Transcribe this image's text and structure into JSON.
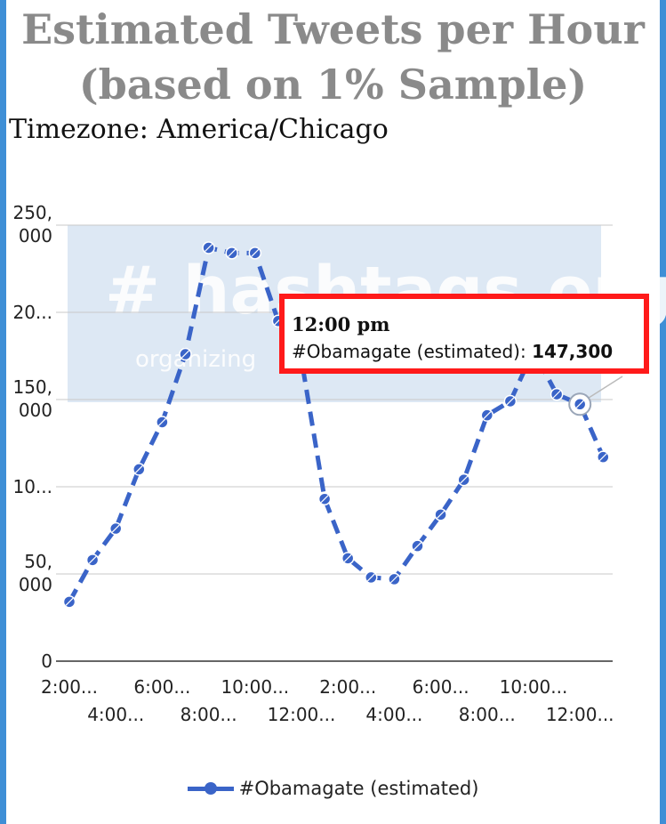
{
  "chart_data": {
    "type": "line",
    "title_lines": [
      "Estimated Tweets per Hour",
      "(based on 1% Sample)"
    ],
    "subtitle": "Timezone: America/Chicago",
    "y_ticks": [
      {
        "value": 0,
        "label": [
          "0"
        ]
      },
      {
        "value": 50000,
        "label": [
          "50,",
          "000"
        ]
      },
      {
        "value": 100000,
        "label": [
          "10..."
        ]
      },
      {
        "value": 150000,
        "label": [
          "150,",
          "000"
        ]
      },
      {
        "value": 200000,
        "label": [
          "20..."
        ]
      },
      {
        "value": 250000,
        "label": [
          "250,",
          "000"
        ]
      }
    ],
    "ylim": [
      0,
      250000
    ],
    "x_tick_labels": [
      {
        "index": 0,
        "text": "2:00..."
      },
      {
        "index": 2,
        "text": "4:00..."
      },
      {
        "index": 4,
        "text": "6:00..."
      },
      {
        "index": 6,
        "text": "8:00..."
      },
      {
        "index": 8,
        "text": "10:00..."
      },
      {
        "index": 10,
        "text": "12:00..."
      },
      {
        "index": 12,
        "text": "2:00..."
      },
      {
        "index": 14,
        "text": "4:00..."
      },
      {
        "index": 16,
        "text": "6:00..."
      },
      {
        "index": 18,
        "text": "8:00..."
      },
      {
        "index": 20,
        "text": "10:00..."
      },
      {
        "index": 22,
        "text": "12:00..."
      }
    ],
    "series": [
      {
        "name": "#Obamagate (estimated)",
        "color": "#3a64c8",
        "values": [
          34000,
          58000,
          76000,
          110000,
          137000,
          176000,
          237000,
          234000,
          234000,
          195000,
          173000,
          93000,
          59000,
          48000,
          47000,
          66000,
          84000,
          104000,
          141000,
          149000,
          178000,
          153000,
          147300,
          117000
        ]
      }
    ],
    "grid": "horizontal",
    "legend_position": "bottom",
    "tooltip": {
      "x_label": "12:00 pm",
      "series_label": "#Obamagate (estimated): ",
      "value_label": "147,300",
      "point_index": 22
    },
    "watermark": {
      "text": "# hashtags.org",
      "tagline": "organizing"
    }
  }
}
